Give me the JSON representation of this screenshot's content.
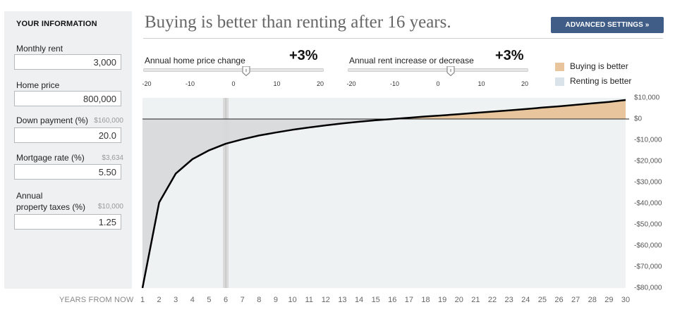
{
  "sidebar": {
    "title": "YOUR INFORMATION",
    "fields": [
      {
        "label": "Monthly rent",
        "sub": "",
        "value": "3,000"
      },
      {
        "label": "Home price",
        "sub": "",
        "value": "800,000"
      },
      {
        "label": "Down payment (%)",
        "sub": "$160,000",
        "value": "20.0"
      },
      {
        "label": "Mortgage rate (%)",
        "sub": "$3,634",
        "value": "5.50"
      },
      {
        "label": "Annual",
        "label2": "property taxes (%)",
        "sub": "$10,000",
        "value": "1.25"
      }
    ]
  },
  "header": {
    "headline": "Buying is better than renting after 16 years.",
    "advanced_button": "ADVANCED SETTINGS »"
  },
  "sliders": [
    {
      "label": "Annual home price change",
      "value_text": "+3%",
      "value": 3,
      "min": -20,
      "max": 20,
      "ticks": [
        "-20",
        "-10",
        "0",
        "10",
        "20"
      ]
    },
    {
      "label": "Annual rent increase or decrease",
      "value_text": "+3%",
      "value": 3,
      "min": -20,
      "max": 20,
      "ticks": [
        "-20",
        "-10",
        "0",
        "10",
        "20"
      ]
    }
  ],
  "legend": {
    "buying": {
      "label": "Buying is better",
      "color": "#e8c59d"
    },
    "renting": {
      "label": "Renting is better",
      "color": "#dbe3ea"
    }
  },
  "chart_data": {
    "type": "area",
    "xlabel": "YEARS FROM NOW",
    "x": [
      1,
      2,
      3,
      4,
      5,
      6,
      7,
      8,
      9,
      10,
      11,
      12,
      13,
      14,
      15,
      16,
      17,
      18,
      19,
      20,
      21,
      22,
      23,
      24,
      25,
      26,
      27,
      28,
      29,
      30
    ],
    "x_tick_labels": [
      "1",
      "2",
      "3",
      "4",
      "5",
      "6",
      "7",
      "8",
      "9",
      "10",
      "11",
      "12",
      "13",
      "14",
      "15",
      "16",
      "17",
      "18",
      "19",
      "20",
      "21",
      "22",
      "23",
      "24",
      "25",
      "26",
      "27",
      "28",
      "29",
      "30"
    ],
    "series": [
      {
        "values": [
          -80000,
          -39500,
          -25800,
          -19000,
          -14800,
          -11700,
          -9600,
          -7800,
          -6400,
          -5100,
          -4000,
          -3000,
          -2100,
          -1300,
          -600,
          0,
          600,
          1200,
          1700,
          2300,
          2900,
          3500,
          4100,
          4700,
          5400,
          6000,
          6700,
          7400,
          8100,
          9000
        ]
      }
    ],
    "ylim": [
      -80000,
      10000
    ],
    "y_tick_labels": [
      "$10,000",
      "$0",
      "-$10,000",
      "-$20,000",
      "-$30,000",
      "-$40,000",
      "-$50,000",
      "-$60,000",
      "-$70,000",
      "-$80,000"
    ],
    "y_tick_values": [
      10000,
      0,
      -10000,
      -20000,
      -30000,
      -40000,
      -50000,
      -60000,
      -70000,
      -80000
    ],
    "highlight_year": 6,
    "colors": {
      "above": "#e8c59d",
      "below": "#d6d8da",
      "plot_bg": "#eef2f2",
      "line": "#000000"
    }
  }
}
